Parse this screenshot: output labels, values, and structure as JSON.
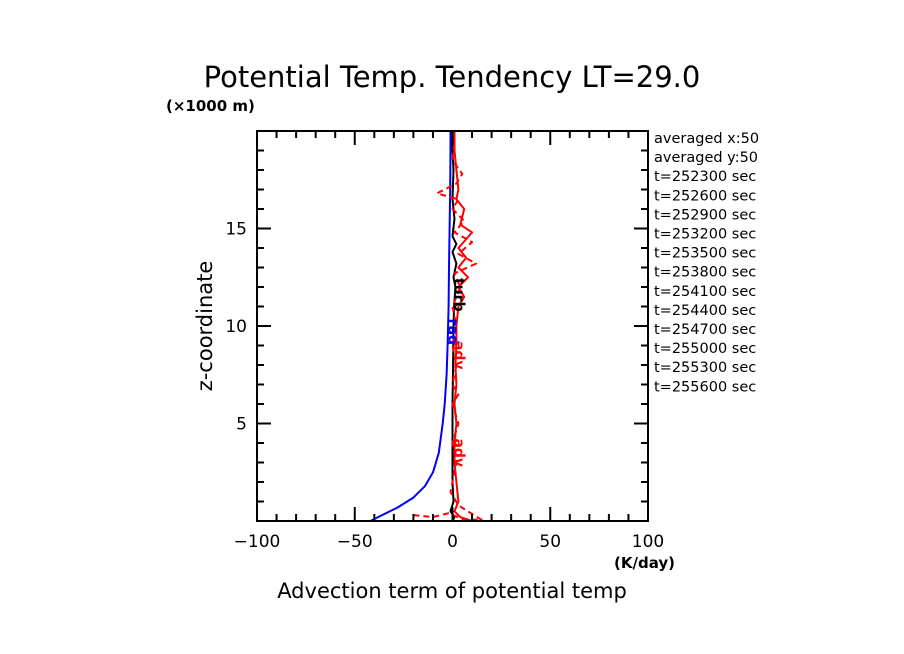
{
  "chart_data": {
    "type": "line",
    "title": "Potential Temp. Tendency LT=29.0",
    "xlabel": "Advection term of potential temp",
    "xunit": "(K/day)",
    "ylabel": "z-coordinate",
    "yunit": "(×1000 m)",
    "xlim": [
      -100,
      100
    ],
    "ylim": [
      0,
      20
    ],
    "xticks": [
      -100,
      -50,
      0,
      50,
      100
    ],
    "xtick_labels": [
      "−100",
      "−50",
      "0",
      "50",
      "100"
    ],
    "yticks": [
      5,
      10,
      15
    ],
    "ytick_labels": [
      "5",
      "10",
      "15"
    ],
    "grid": false,
    "legend_text": [
      "averaged  x:50",
      "averaged  y:50",
      "t=252300 sec",
      "t=252600 sec",
      "t=252900 sec",
      "t=253200 sec",
      "t=253500 sec",
      "t=253800 sec",
      "t=254100 sec",
      "t=254400 sec",
      "t=254700 sec",
      "t=255000 sec",
      "t=255300 sec",
      "t=255600 sec"
    ],
    "legend_position": "right",
    "series": [
      {
        "name": "rad",
        "color": "#0000ff",
        "style": "solid",
        "points": [
          [
            -42,
            0
          ],
          [
            -36,
            0.3
          ],
          [
            -28,
            0.7
          ],
          [
            -20,
            1.2
          ],
          [
            -14,
            1.8
          ],
          [
            -10,
            2.5
          ],
          [
            -7,
            3.5
          ],
          [
            -5,
            5
          ],
          [
            -4,
            6
          ],
          [
            -3,
            7.5
          ],
          [
            -2.5,
            9
          ],
          [
            -2,
            11
          ],
          [
            -1.8,
            13
          ],
          [
            -1.5,
            15
          ],
          [
            -1.2,
            17
          ],
          [
            -1,
            19
          ],
          [
            -1,
            20
          ]
        ]
      },
      {
        "name": "turb",
        "color": "#000000",
        "style": "solid",
        "points": [
          [
            0,
            0
          ],
          [
            1,
            0.2
          ],
          [
            -1,
            0.5
          ],
          [
            0.5,
            1
          ],
          [
            0,
            2
          ],
          [
            0,
            4
          ],
          [
            0,
            6
          ],
          [
            0.3,
            8
          ],
          [
            0.5,
            10
          ],
          [
            0.8,
            11
          ],
          [
            1.5,
            12
          ],
          [
            0.5,
            12.5
          ],
          [
            2,
            13.2
          ],
          [
            0,
            13.8
          ],
          [
            2,
            14.2
          ],
          [
            0,
            14.6
          ],
          [
            1,
            15.5
          ],
          [
            0,
            16.5
          ],
          [
            0.5,
            18
          ],
          [
            0,
            19
          ],
          [
            0,
            20
          ]
        ]
      },
      {
        "name": "adv",
        "color": "#ff0000",
        "style": "solid",
        "points": [
          [
            10,
            0
          ],
          [
            4,
            0.2
          ],
          [
            1,
            0.5
          ],
          [
            3,
            1
          ],
          [
            2,
            2
          ],
          [
            1,
            3
          ],
          [
            1,
            4
          ],
          [
            2,
            5
          ],
          [
            1,
            6
          ],
          [
            2,
            7
          ],
          [
            1.5,
            8
          ],
          [
            2,
            9
          ],
          [
            2,
            10
          ],
          [
            3,
            11
          ],
          [
            6,
            11.5
          ],
          [
            3,
            12
          ],
          [
            8,
            12.5
          ],
          [
            3,
            13
          ],
          [
            7,
            13.5
          ],
          [
            3,
            14
          ],
          [
            10,
            14.8
          ],
          [
            4,
            15.2
          ],
          [
            6,
            16
          ],
          [
            2,
            16.5
          ],
          [
            3,
            17
          ],
          [
            2,
            18
          ],
          [
            1,
            19
          ],
          [
            1,
            20
          ]
        ]
      },
      {
        "name": "adv-dashed",
        "color": "#ff0000",
        "style": "dashed",
        "points": [
          [
            -20,
            0.3
          ],
          [
            -10,
            0.2
          ],
          [
            -2,
            0.4
          ],
          [
            5,
            0.1
          ],
          [
            15,
            0.05
          ],
          [
            3,
            0.8
          ],
          [
            -1,
            1.5
          ],
          [
            2,
            3
          ],
          [
            0,
            4
          ],
          [
            3,
            5
          ],
          [
            0,
            6
          ],
          [
            3,
            6.5
          ],
          [
            0,
            7
          ],
          [
            2,
            8
          ],
          [
            0,
            9
          ],
          [
            2,
            10
          ],
          [
            0,
            11
          ],
          [
            4,
            12
          ],
          [
            1,
            12.7
          ],
          [
            12,
            13.2
          ],
          [
            3,
            13.7
          ],
          [
            10,
            14.3
          ],
          [
            1,
            14.8
          ],
          [
            6,
            15.4
          ],
          [
            0,
            16
          ],
          [
            3,
            16.5
          ],
          [
            -8,
            16.8
          ],
          [
            2,
            17.3
          ],
          [
            5,
            17.8
          ],
          [
            0,
            18.5
          ],
          [
            1,
            19.5
          ],
          [
            0,
            20
          ]
        ]
      }
    ],
    "curve_labels": [
      "rad",
      "turb",
      "adv"
    ]
  }
}
